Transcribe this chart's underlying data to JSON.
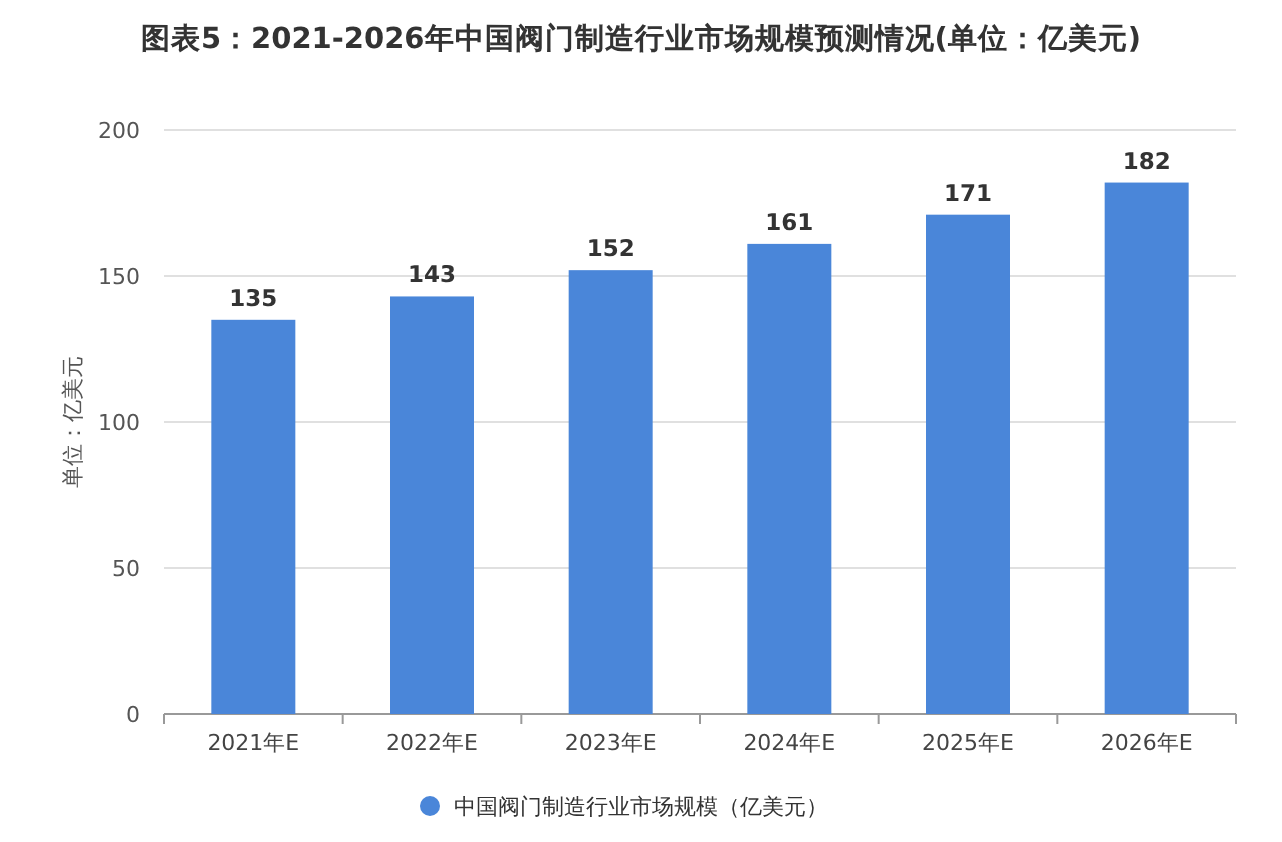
{
  "chart_data": {
    "type": "bar",
    "title": "图表5：2021-2026年中国阀门制造行业市场规模预测情况(单位：亿美元)",
    "ylabel": "单位：亿美元",
    "categories": [
      "2021年E",
      "2022年E",
      "2023年E",
      "2024年E",
      "2025年E",
      "2026年E"
    ],
    "series": [
      {
        "name": "中国阀门制造行业市场规模（亿美元）",
        "color": "#4a86d9",
        "values": [
          135,
          143,
          152,
          161,
          171,
          182
        ]
      }
    ],
    "ylim": [
      0,
      200
    ],
    "yticks": [
      0,
      50,
      100,
      150,
      200
    ],
    "grid": "y",
    "legend": "bottom",
    "data_labels": true
  }
}
